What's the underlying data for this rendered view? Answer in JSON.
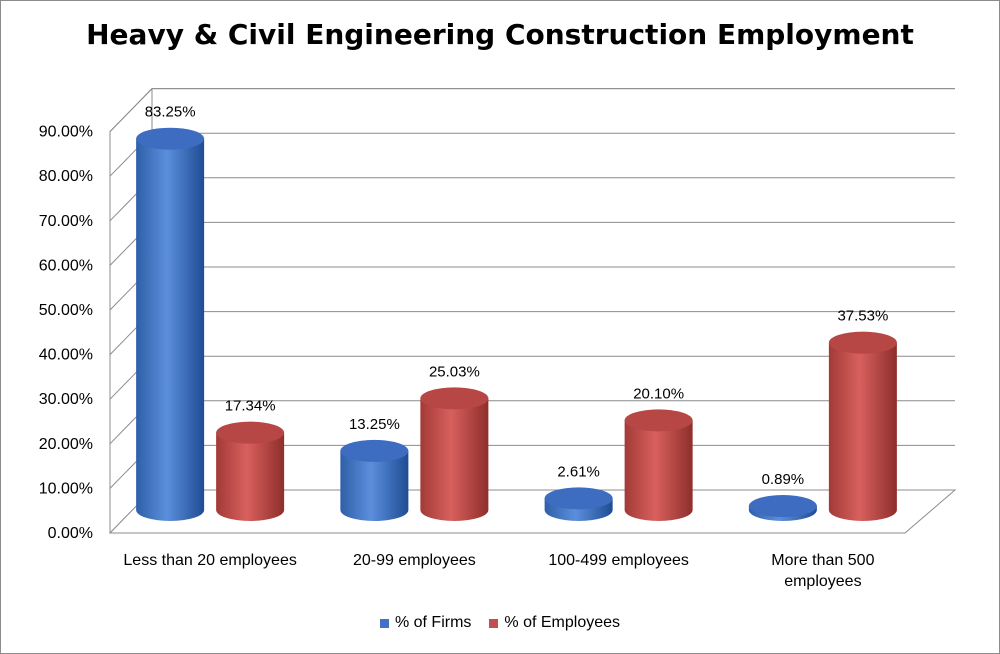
{
  "chart_data": {
    "type": "bar",
    "title": "Heavy & Civil Engineering Construction Employment",
    "categories": [
      [
        "Less than 20 employees"
      ],
      [
        "20-99 employees"
      ],
      [
        "100-499 employees"
      ],
      [
        "More than 500",
        "employees"
      ]
    ],
    "series": [
      {
        "name": "% of Firms",
        "values": [
          83.25,
          13.25,
          2.61,
          0.89
        ],
        "labels": [
          "83.25%",
          "13.25%",
          "2.61%",
          "0.89%"
        ],
        "color": "#4472C4"
      },
      {
        "name": "% of Employees",
        "values": [
          17.34,
          25.03,
          20.1,
          37.53
        ],
        "labels": [
          "17.34%",
          "25.03%",
          "20.10%",
          "37.53%"
        ],
        "color": "#C0504D"
      }
    ],
    "yticks": [
      "0.00%",
      "10.00%",
      "20.00%",
      "30.00%",
      "40.00%",
      "50.00%",
      "60.00%",
      "70.00%",
      "80.00%",
      "90.00%"
    ],
    "ylim": [
      0,
      90
    ],
    "grid": true,
    "legend_position": "bottom"
  }
}
